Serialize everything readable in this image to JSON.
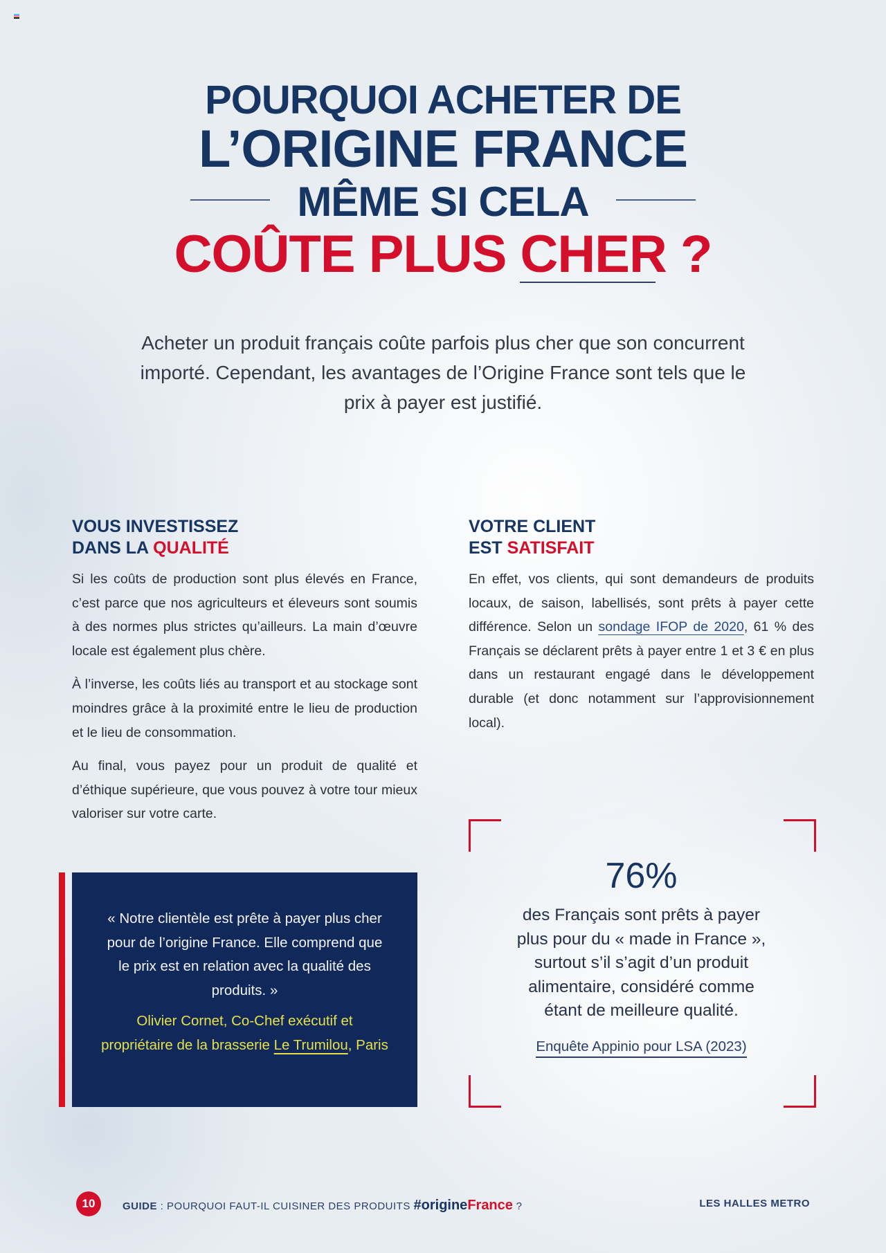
{
  "headline": {
    "line1": "POURQUOI ACHETER DE",
    "line2": "L’ORIGINE FRANCE",
    "line3": "MÊME SI CELA",
    "line4_a": "COÛTE PLUS ",
    "line4_b": "CHER",
    "line4_c": " ?"
  },
  "intro": "Acheter un produit français coûte parfois plus cher que son concurrent importé. Cependant, les avantages de l’Origine France sont tels que le prix à payer est justifié.",
  "left_section": {
    "heading_1": "VOUS INVESTISSEZ",
    "heading_2a": "DANS LA ",
    "heading_2b": "QUALITÉ",
    "paragraphs": [
      "Si les coûts de production sont plus élevés en France, c’est parce que nos agriculteurs et éleveurs sont soumis à des normes plus strictes qu’ailleurs. La main d’œuvre locale est également plus chère.",
      "À l’inverse, les coûts liés au transport et au stockage sont moindres grâce à la proximité entre le lieu de production et le lieu de consommation.",
      "Au final, vous payez pour un produit de qualité et d’éthique supérieure, que vous pouvez à votre tour mieux valoriser sur votre carte."
    ]
  },
  "right_section": {
    "heading_1": "VOTRE CLIENT",
    "heading_2a": "EST ",
    "heading_2b": "SATISFAIT",
    "p_before": "En effet, vos clients, qui sont demandeurs de produits locaux, de saison, labellisés, sont prêts à payer cette différence. Selon un ",
    "p_link": "sondage IFOP de 2020",
    "p_after": ", 61 % des Français se déclarent prêts à payer entre 1 et 3 € en plus dans un restaurant engagé dans le développement durable (et donc notamment sur l’approvisionnement local)."
  },
  "quote": {
    "text": "« Notre clientèle est prête à payer plus cher pour de l’origine France. Elle comprend que le prix est en relation avec la qualité des produits. »",
    "author_before": "Olivier Cornet, Co-Chef exécutif et propriétaire de la brasserie ",
    "author_link": "Le Trumilou",
    "author_after": ", Paris"
  },
  "stat": {
    "value": "76%",
    "text": "des Français sont prêts à payer plus pour du « made in France », surtout s’il s’agit d’un produit alimentaire, considéré comme étant de meilleure qualité.",
    "source": "Enquête Appinio pour LSA (2023)"
  },
  "footer": {
    "page_number": "10",
    "guide_label": "GUIDE",
    "guide_text": " : POURQUOI FAUT-IL CUISINER DES PRODUITS ",
    "hashtag_a": "#origine",
    "hashtag_b": "France",
    "question": " ?",
    "brand": "LES HALLES METRO"
  },
  "colors": {
    "navy": "#173562",
    "red": "#d3102b",
    "quote_bg": "#10285a",
    "quote_author": "#e6e04a"
  }
}
